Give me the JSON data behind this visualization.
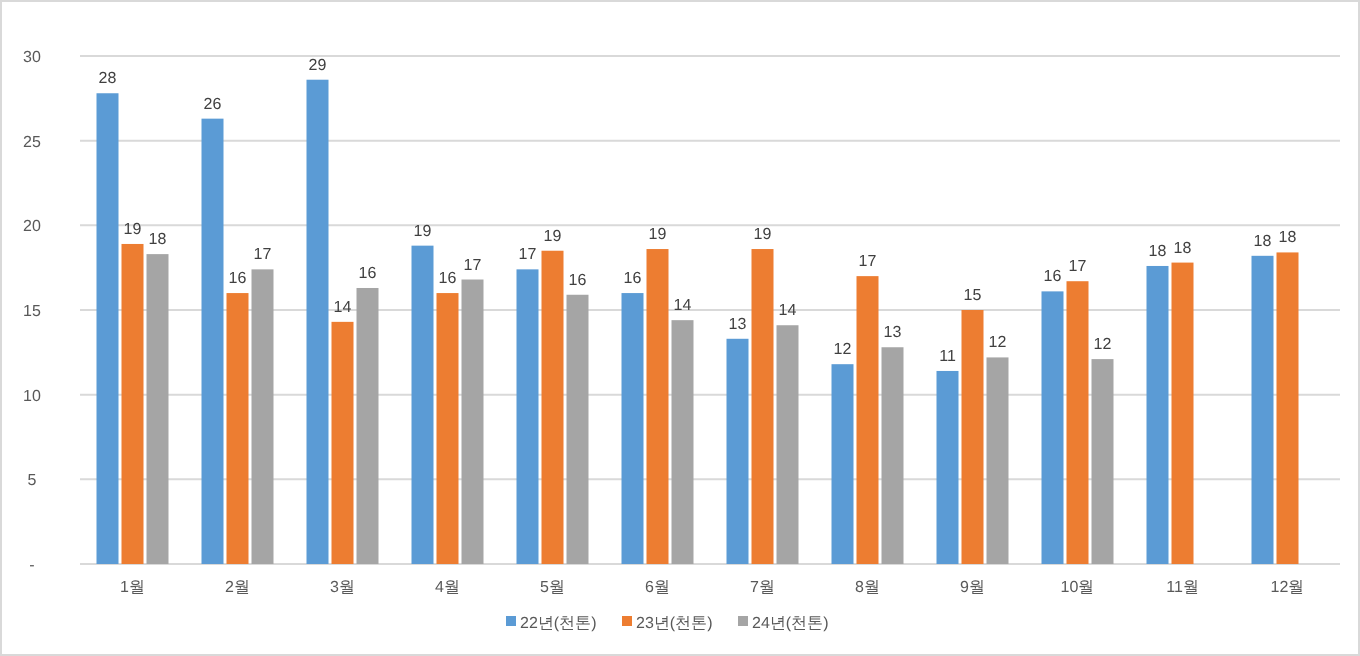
{
  "chart_data": {
    "type": "bar",
    "categories": [
      "1월",
      "2월",
      "3월",
      "4월",
      "5월",
      "6월",
      "7월",
      "8월",
      "9월",
      "10월",
      "11월",
      "12월"
    ],
    "series": [
      {
        "name": "22년(천톤)",
        "color": "#5b9bd5",
        "values": [
          27.8,
          26.3,
          28.6,
          18.8,
          17.4,
          16.0,
          13.3,
          11.8,
          11.4,
          16.1,
          17.6,
          18.2
        ],
        "value_labels": [
          "28",
          "26",
          "29",
          "19",
          "17",
          "16",
          "13",
          "12",
          "11",
          "16",
          "18",
          "18"
        ]
      },
      {
        "name": "23년(천톤)",
        "color": "#ed7d31",
        "values": [
          18.9,
          16.0,
          14.3,
          16.0,
          18.5,
          18.6,
          18.6,
          17.0,
          15.0,
          16.7,
          17.8,
          18.4
        ],
        "value_labels": [
          "19",
          "16",
          "14",
          "16",
          "19",
          "19",
          "19",
          "17",
          "15",
          "17",
          "18",
          "18"
        ]
      },
      {
        "name": "24년(천톤)",
        "color": "#a5a5a5",
        "values": [
          18.3,
          17.4,
          16.3,
          16.8,
          15.9,
          14.4,
          14.1,
          12.8,
          12.2,
          12.1,
          null,
          null
        ],
        "value_labels": [
          "18",
          "17",
          "16",
          "17",
          "16",
          "14",
          "14",
          "13",
          "12",
          "12",
          null,
          null
        ]
      }
    ],
    "ylim": [
      0,
      30
    ],
    "yticks": [
      {
        "value": 0,
        "label": "-"
      },
      5,
      10,
      15,
      20,
      25,
      30
    ],
    "grid": "y",
    "legend": "bottom"
  }
}
